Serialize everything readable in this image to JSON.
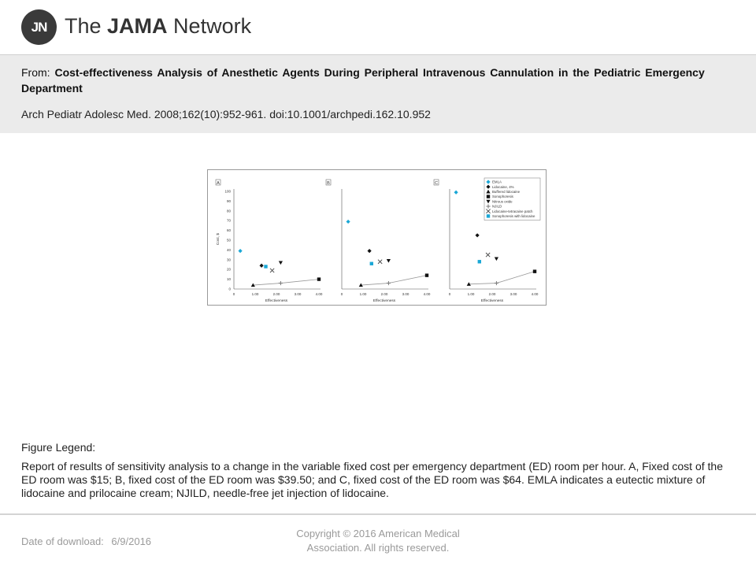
{
  "header": {
    "logo_mark": "JN",
    "logo_prefix": "The ",
    "logo_bold": "JAMA",
    "logo_suffix": " Network"
  },
  "citation": {
    "from_label": "From:",
    "title": "Cost-effectiveness Analysis of Anesthetic Agents During Peripheral Intravenous Cannulation in the Pediatric Emergency Department",
    "reference": "Arch Pediatr Adolesc Med. 2008;162(10):952-961. doi:10.1001/archpedi.162.10.952"
  },
  "chart_data": [
    {
      "type": "scatter",
      "panel": "A",
      "xlabel": "Effectiveness",
      "ylabel": "Cost, $",
      "xticks": [
        "0",
        "1.00",
        "2.00",
        "3.00",
        "4.00"
      ],
      "yticks": [
        "0",
        "10",
        "20",
        "30",
        "40",
        "50",
        "60",
        "70",
        "80",
        "90",
        "100"
      ],
      "xlim": [
        0,
        4
      ],
      "ylim": [
        0,
        100
      ],
      "points": [
        {
          "series": "EMLA",
          "x": 0.3,
          "y": 39
        },
        {
          "series": "Lidocaine, 4%",
          "x": 1.3,
          "y": 24
        },
        {
          "series": "Buffered lidocaine",
          "x": 0.9,
          "y": 4
        },
        {
          "series": "Sonophoresis",
          "x": 4.0,
          "y": 10
        },
        {
          "series": "Nitrous oxide",
          "x": 2.2,
          "y": 27
        },
        {
          "series": "NJILD",
          "x": 2.2,
          "y": 6
        },
        {
          "series": "Lidocaine-tetracaine patch",
          "x": 1.8,
          "y": 19
        },
        {
          "series": "Sonophoresis with lidocaine",
          "x": 1.5,
          "y": 23
        }
      ],
      "frontier": [
        [
          0.9,
          4
        ],
        [
          2.2,
          6
        ],
        [
          4.0,
          10
        ]
      ]
    },
    {
      "type": "scatter",
      "panel": "B",
      "xlabel": "Effectiveness",
      "ylabel": "",
      "xticks": [
        "0",
        "1.00",
        "2.00",
        "3.00",
        "4.00"
      ],
      "yticks": [],
      "xlim": [
        0,
        4
      ],
      "ylim": [
        0,
        100
      ],
      "points": [
        {
          "series": "EMLA",
          "x": 0.3,
          "y": 69
        },
        {
          "series": "Lidocaine, 4%",
          "x": 1.3,
          "y": 39
        },
        {
          "series": "Buffered lidocaine",
          "x": 0.9,
          "y": 4
        },
        {
          "series": "Sonophoresis",
          "x": 4.0,
          "y": 14
        },
        {
          "series": "Nitrous oxide",
          "x": 2.2,
          "y": 29
        },
        {
          "series": "NJILD",
          "x": 2.2,
          "y": 6
        },
        {
          "series": "Lidocaine-tetracaine patch",
          "x": 1.8,
          "y": 28
        },
        {
          "series": "Sonophoresis with lidocaine",
          "x": 1.4,
          "y": 26
        }
      ],
      "frontier": [
        [
          0.9,
          4
        ],
        [
          2.2,
          6
        ],
        [
          4.0,
          14
        ]
      ]
    },
    {
      "type": "scatter",
      "panel": "C",
      "xlabel": "Effectiveness",
      "ylabel": "",
      "xticks": [
        "0",
        "1.00",
        "2.00",
        "3.00",
        "4.00"
      ],
      "yticks": [],
      "xlim": [
        0,
        4
      ],
      "ylim": [
        0,
        100
      ],
      "points": [
        {
          "series": "EMLA",
          "x": 0.3,
          "y": 99
        },
        {
          "series": "Lidocaine, 4%",
          "x": 1.3,
          "y": 55
        },
        {
          "series": "Buffered lidocaine",
          "x": 0.9,
          "y": 5
        },
        {
          "series": "Sonophoresis",
          "x": 4.0,
          "y": 18
        },
        {
          "series": "Nitrous oxide",
          "x": 2.2,
          "y": 31
        },
        {
          "series": "NJILD",
          "x": 2.2,
          "y": 6
        },
        {
          "series": "Lidocaine-tetracaine patch",
          "x": 1.8,
          "y": 35
        },
        {
          "series": "Sonophoresis with lidocaine",
          "x": 1.4,
          "y": 28
        }
      ],
      "frontier": [
        [
          0.9,
          5
        ],
        [
          2.2,
          6
        ],
        [
          4.0,
          18
        ]
      ]
    }
  ],
  "chart_legend": {
    "placement": "top-right of panel C",
    "entries": [
      {
        "label": "EMLA",
        "marker": "diamond",
        "color": "#1aa7d6"
      },
      {
        "label": "Lidocaine, 4%",
        "marker": "diamond",
        "color": "#111111"
      },
      {
        "label": "Buffered lidocaine",
        "marker": "triangle-up",
        "color": "#111111"
      },
      {
        "label": "Sonophoresis",
        "marker": "square",
        "color": "#111111"
      },
      {
        "label": "Nitrous oxide",
        "marker": "triangle-down",
        "color": "#111111"
      },
      {
        "label": "NJILD",
        "marker": "plus",
        "color": "#777777"
      },
      {
        "label": "Lidocaine-tetracaine patch",
        "marker": "cross",
        "color": "#444444"
      },
      {
        "label": "Sonophoresis with lidocaine",
        "marker": "square",
        "color": "#1aa7d6"
      }
    ]
  },
  "legend": {
    "heading": "Figure Legend:",
    "text": "Report of results of sensitivity analysis to a change in the variable fixed cost per emergency department (ED) room per hour. A, Fixed cost of the ED room was $15; B, fixed cost of the ED room was $39.50; and C, fixed cost of the ED room was $64.  EMLA indicates a eutectic mixture of lidocaine and prilocaine cream; NJILD, needle-free jet injection of lidocaine."
  },
  "footer": {
    "download_label": "Date of download:",
    "download_date": "6/9/2016",
    "copyright": "Copyright © 2016 American Medical Association. All rights reserved."
  }
}
